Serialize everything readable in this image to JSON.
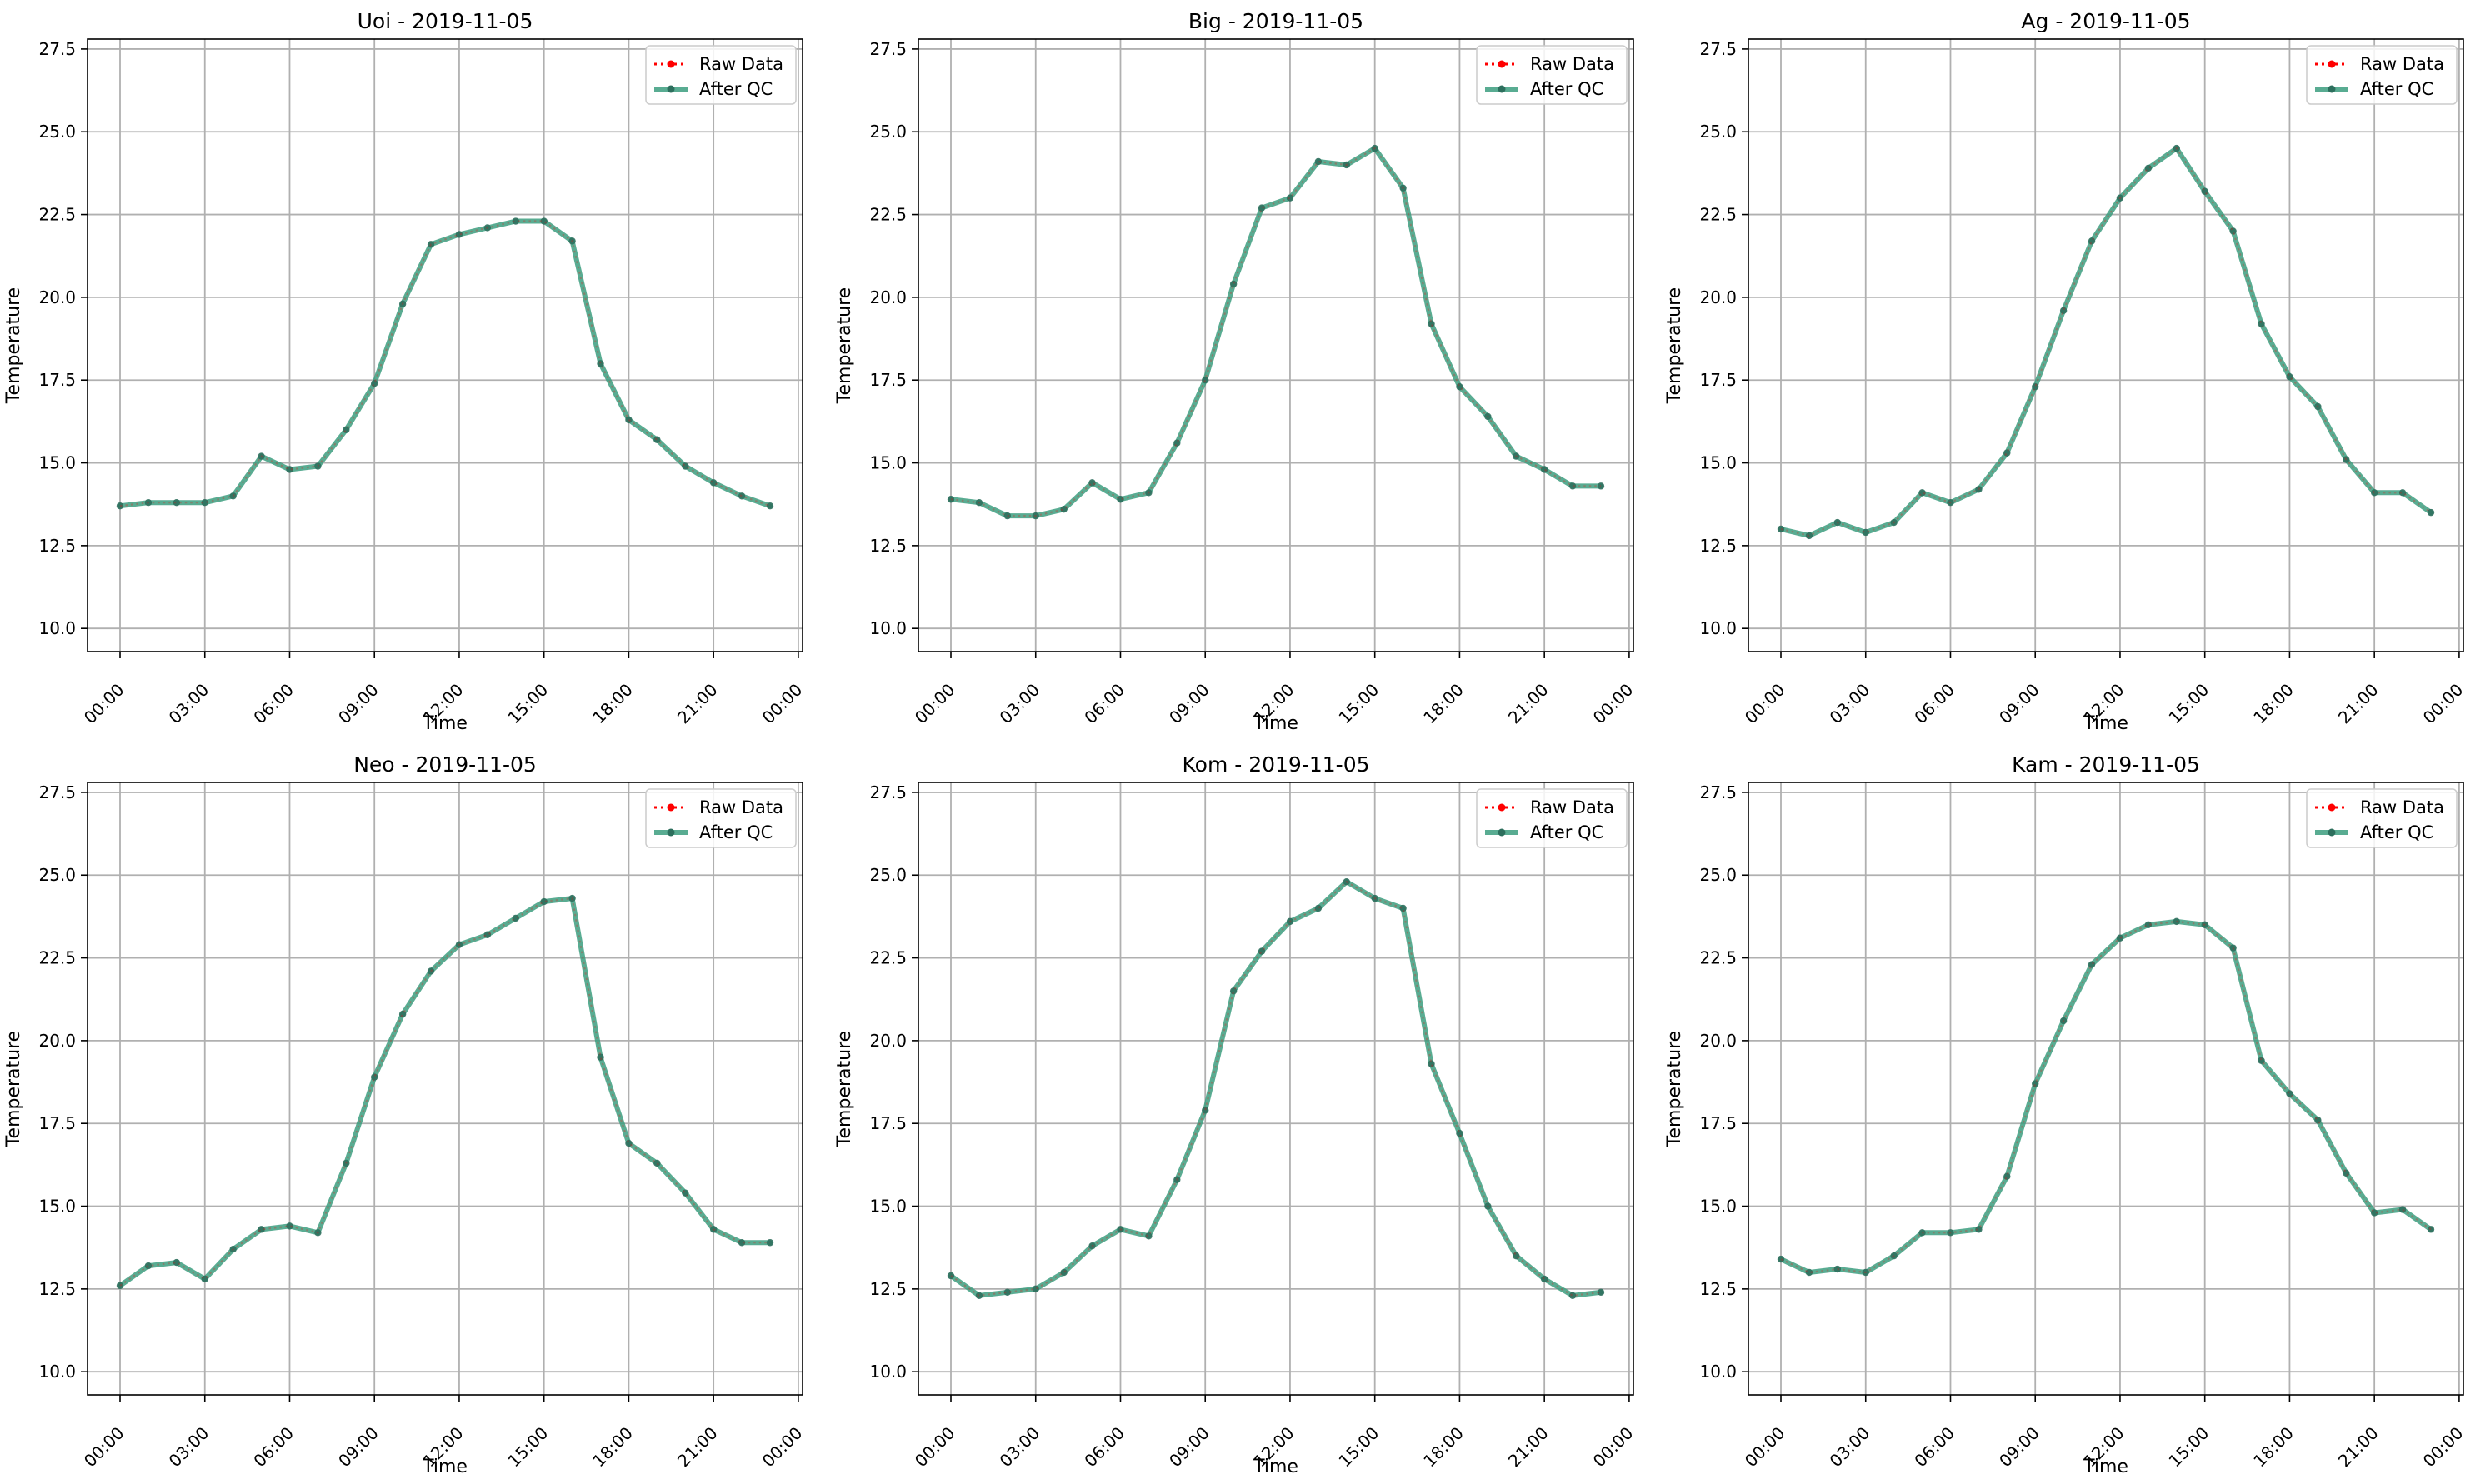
{
  "figure": {
    "background": "#ffffff",
    "raw_color": "#ff0000",
    "qc_color": "#3c9e7f",
    "qc_marker_color": "#2d6f5d"
  },
  "chart_data": [
    {
      "type": "line",
      "title": "Uoi - 2019-11-05",
      "xlabel": "Time",
      "ylabel": "Temperature",
      "xlim": [
        -1.15,
        24.15
      ],
      "ylim": [
        9.3,
        27.8
      ],
      "xticks": [
        0,
        3,
        6,
        9,
        12,
        15,
        18,
        21,
        24
      ],
      "xtick_labels": [
        "00:00",
        "03:00",
        "06:00",
        "09:00",
        "12:00",
        "15:00",
        "18:00",
        "21:00",
        "00:00"
      ],
      "yticks": [
        10.0,
        12.5,
        15.0,
        17.5,
        20.0,
        22.5,
        25.0,
        27.5
      ],
      "ytick_labels": [
        "10.0",
        "12.5",
        "15.0",
        "17.5",
        "20.0",
        "22.5",
        "25.0",
        "27.5"
      ],
      "grid": true,
      "legend_position": "top-right",
      "x": [
        0,
        1,
        2,
        3,
        4,
        5,
        6,
        7,
        8,
        9,
        10,
        11,
        12,
        13,
        14,
        15,
        16,
        17,
        18,
        19,
        20,
        21,
        22,
        23
      ],
      "series": [
        {
          "name": "Raw Data",
          "style": "dotted-red",
          "values": [
            13.7,
            13.8,
            13.8,
            13.8,
            14.0,
            15.2,
            14.8,
            14.9,
            16.0,
            17.4,
            19.8,
            21.6,
            21.9,
            22.1,
            22.3,
            22.3,
            21.7,
            18.0,
            16.3,
            15.7,
            14.9,
            14.4,
            14.0,
            13.7
          ]
        },
        {
          "name": "After QC",
          "style": "solid-teal",
          "values": [
            13.7,
            13.8,
            13.8,
            13.8,
            14.0,
            15.2,
            14.8,
            14.9,
            16.0,
            17.4,
            19.8,
            21.6,
            21.9,
            22.1,
            22.3,
            22.3,
            21.7,
            18.0,
            16.3,
            15.7,
            14.9,
            14.4,
            14.0,
            13.7
          ]
        }
      ]
    },
    {
      "type": "line",
      "title": "Big - 2019-11-05",
      "xlabel": "Time",
      "ylabel": "Temperature",
      "xlim": [
        -1.15,
        24.15
      ],
      "ylim": [
        9.3,
        27.8
      ],
      "xticks": [
        0,
        3,
        6,
        9,
        12,
        15,
        18,
        21,
        24
      ],
      "xtick_labels": [
        "00:00",
        "03:00",
        "06:00",
        "09:00",
        "12:00",
        "15:00",
        "18:00",
        "21:00",
        "00:00"
      ],
      "yticks": [
        10.0,
        12.5,
        15.0,
        17.5,
        20.0,
        22.5,
        25.0,
        27.5
      ],
      "ytick_labels": [
        "10.0",
        "12.5",
        "15.0",
        "17.5",
        "20.0",
        "22.5",
        "25.0",
        "27.5"
      ],
      "grid": true,
      "legend_position": "top-right",
      "x": [
        0,
        1,
        2,
        3,
        4,
        5,
        6,
        7,
        8,
        9,
        10,
        11,
        12,
        13,
        14,
        15,
        16,
        17,
        18,
        19,
        20,
        21,
        22,
        23
      ],
      "series": [
        {
          "name": "Raw Data",
          "style": "dotted-red",
          "values": [
            13.9,
            13.8,
            13.4,
            13.4,
            13.6,
            14.4,
            13.9,
            14.1,
            15.6,
            17.5,
            20.4,
            22.7,
            23.0,
            24.1,
            24.0,
            24.5,
            23.3,
            19.2,
            17.3,
            16.4,
            15.2,
            14.8,
            14.3,
            14.3
          ]
        },
        {
          "name": "After QC",
          "style": "solid-teal",
          "values": [
            13.9,
            13.8,
            13.4,
            13.4,
            13.6,
            14.4,
            13.9,
            14.1,
            15.6,
            17.5,
            20.4,
            22.7,
            23.0,
            24.1,
            24.0,
            24.5,
            23.3,
            19.2,
            17.3,
            16.4,
            15.2,
            14.8,
            14.3,
            14.3
          ]
        }
      ]
    },
    {
      "type": "line",
      "title": "Ag - 2019-11-05",
      "xlabel": "Time",
      "ylabel": "Temperature",
      "xlim": [
        -1.15,
        24.15
      ],
      "ylim": [
        9.3,
        27.8
      ],
      "xticks": [
        0,
        3,
        6,
        9,
        12,
        15,
        18,
        21,
        24
      ],
      "xtick_labels": [
        "00:00",
        "03:00",
        "06:00",
        "09:00",
        "12:00",
        "15:00",
        "18:00",
        "21:00",
        "00:00"
      ],
      "yticks": [
        10.0,
        12.5,
        15.0,
        17.5,
        20.0,
        22.5,
        25.0,
        27.5
      ],
      "ytick_labels": [
        "10.0",
        "12.5",
        "15.0",
        "17.5",
        "20.0",
        "22.5",
        "25.0",
        "27.5"
      ],
      "grid": true,
      "legend_position": "top-right",
      "x": [
        0,
        1,
        2,
        3,
        4,
        5,
        6,
        7,
        8,
        9,
        10,
        11,
        12,
        13,
        14,
        15,
        16,
        17,
        18,
        19,
        20,
        21,
        22,
        23
      ],
      "series": [
        {
          "name": "Raw Data",
          "style": "dotted-red",
          "values": [
            13.0,
            12.8,
            13.2,
            12.9,
            13.2,
            14.1,
            13.8,
            14.2,
            15.3,
            17.3,
            19.6,
            21.7,
            23.0,
            23.9,
            24.5,
            23.2,
            22.0,
            19.2,
            17.6,
            16.7,
            15.1,
            14.1,
            14.1,
            13.5
          ]
        },
        {
          "name": "After QC",
          "style": "solid-teal",
          "values": [
            13.0,
            12.8,
            13.2,
            12.9,
            13.2,
            14.1,
            13.8,
            14.2,
            15.3,
            17.3,
            19.6,
            21.7,
            23.0,
            23.9,
            24.5,
            23.2,
            22.0,
            19.2,
            17.6,
            16.7,
            15.1,
            14.1,
            14.1,
            13.5
          ]
        }
      ]
    },
    {
      "type": "line",
      "title": "Neo - 2019-11-05",
      "xlabel": "Time",
      "ylabel": "Temperature",
      "xlim": [
        -1.15,
        24.15
      ],
      "ylim": [
        9.3,
        27.8
      ],
      "xticks": [
        0,
        3,
        6,
        9,
        12,
        15,
        18,
        21,
        24
      ],
      "xtick_labels": [
        "00:00",
        "03:00",
        "06:00",
        "09:00",
        "12:00",
        "15:00",
        "18:00",
        "21:00",
        "00:00"
      ],
      "yticks": [
        10.0,
        12.5,
        15.0,
        17.5,
        20.0,
        22.5,
        25.0,
        27.5
      ],
      "ytick_labels": [
        "10.0",
        "12.5",
        "15.0",
        "17.5",
        "20.0",
        "22.5",
        "25.0",
        "27.5"
      ],
      "grid": true,
      "legend_position": "top-right",
      "x": [
        0,
        1,
        2,
        3,
        4,
        5,
        6,
        7,
        8,
        9,
        10,
        11,
        12,
        13,
        14,
        15,
        16,
        17,
        18,
        19,
        20,
        21,
        22,
        23
      ],
      "series": [
        {
          "name": "Raw Data",
          "style": "dotted-red",
          "values": [
            12.6,
            13.2,
            13.3,
            12.8,
            13.7,
            14.3,
            14.4,
            14.2,
            16.3,
            18.9,
            20.8,
            22.1,
            22.9,
            23.2,
            23.7,
            24.2,
            24.3,
            19.5,
            16.9,
            16.3,
            15.4,
            14.3,
            13.9,
            13.9
          ]
        },
        {
          "name": "After QC",
          "style": "solid-teal",
          "values": [
            12.6,
            13.2,
            13.3,
            12.8,
            13.7,
            14.3,
            14.4,
            14.2,
            16.3,
            18.9,
            20.8,
            22.1,
            22.9,
            23.2,
            23.7,
            24.2,
            24.3,
            19.5,
            16.9,
            16.3,
            15.4,
            14.3,
            13.9,
            13.9
          ]
        }
      ]
    },
    {
      "type": "line",
      "title": "Kom - 2019-11-05",
      "xlabel": "Time",
      "ylabel": "Temperature",
      "xlim": [
        -1.15,
        24.15
      ],
      "ylim": [
        9.3,
        27.8
      ],
      "xticks": [
        0,
        3,
        6,
        9,
        12,
        15,
        18,
        21,
        24
      ],
      "xtick_labels": [
        "00:00",
        "03:00",
        "06:00",
        "09:00",
        "12:00",
        "15:00",
        "18:00",
        "21:00",
        "00:00"
      ],
      "yticks": [
        10.0,
        12.5,
        15.0,
        17.5,
        20.0,
        22.5,
        25.0,
        27.5
      ],
      "ytick_labels": [
        "10.0",
        "12.5",
        "15.0",
        "17.5",
        "20.0",
        "22.5",
        "25.0",
        "27.5"
      ],
      "grid": true,
      "legend_position": "top-right",
      "x": [
        0,
        1,
        2,
        3,
        4,
        5,
        6,
        7,
        8,
        9,
        10,
        11,
        12,
        13,
        14,
        15,
        16,
        17,
        18,
        19,
        20,
        21,
        22,
        23
      ],
      "series": [
        {
          "name": "Raw Data",
          "style": "dotted-red",
          "values": [
            12.9,
            12.3,
            12.4,
            12.5,
            13.0,
            13.8,
            14.3,
            14.1,
            15.8,
            17.9,
            21.5,
            22.7,
            23.6,
            24.0,
            24.8,
            24.3,
            24.0,
            19.3,
            17.2,
            15.0,
            13.5,
            12.8,
            12.3,
            12.4
          ]
        },
        {
          "name": "After QC",
          "style": "solid-teal",
          "values": [
            12.9,
            12.3,
            12.4,
            12.5,
            13.0,
            13.8,
            14.3,
            14.1,
            15.8,
            17.9,
            21.5,
            22.7,
            23.6,
            24.0,
            24.8,
            24.3,
            24.0,
            19.3,
            17.2,
            15.0,
            13.5,
            12.8,
            12.3,
            12.4
          ]
        }
      ]
    },
    {
      "type": "line",
      "title": "Kam - 2019-11-05",
      "xlabel": "Time",
      "ylabel": "Temperature",
      "xlim": [
        -1.15,
        24.15
      ],
      "ylim": [
        9.3,
        27.8
      ],
      "xticks": [
        0,
        3,
        6,
        9,
        12,
        15,
        18,
        21,
        24
      ],
      "xtick_labels": [
        "00:00",
        "03:00",
        "06:00",
        "09:00",
        "12:00",
        "15:00",
        "18:00",
        "21:00",
        "00:00"
      ],
      "yticks": [
        10.0,
        12.5,
        15.0,
        17.5,
        20.0,
        22.5,
        25.0,
        27.5
      ],
      "ytick_labels": [
        "10.0",
        "12.5",
        "15.0",
        "17.5",
        "20.0",
        "22.5",
        "25.0",
        "27.5"
      ],
      "grid": true,
      "legend_position": "top-right",
      "x": [
        0,
        1,
        2,
        3,
        4,
        5,
        6,
        7,
        8,
        9,
        10,
        11,
        12,
        13,
        14,
        15,
        16,
        17,
        18,
        19,
        20,
        21,
        22,
        23
      ],
      "series": [
        {
          "name": "Raw Data",
          "style": "dotted-red",
          "values": [
            13.4,
            13.0,
            13.1,
            13.0,
            13.5,
            14.2,
            14.2,
            14.3,
            15.9,
            18.7,
            20.6,
            22.3,
            23.1,
            23.5,
            23.6,
            23.5,
            22.8,
            19.4,
            18.4,
            17.6,
            16.0,
            14.8,
            14.9,
            14.3
          ]
        },
        {
          "name": "After QC",
          "style": "solid-teal",
          "values": [
            13.4,
            13.0,
            13.1,
            13.0,
            13.5,
            14.2,
            14.2,
            14.3,
            15.9,
            18.7,
            20.6,
            22.3,
            23.1,
            23.5,
            23.6,
            23.5,
            22.8,
            19.4,
            18.4,
            17.6,
            16.0,
            14.8,
            14.9,
            14.3
          ]
        }
      ]
    }
  ]
}
